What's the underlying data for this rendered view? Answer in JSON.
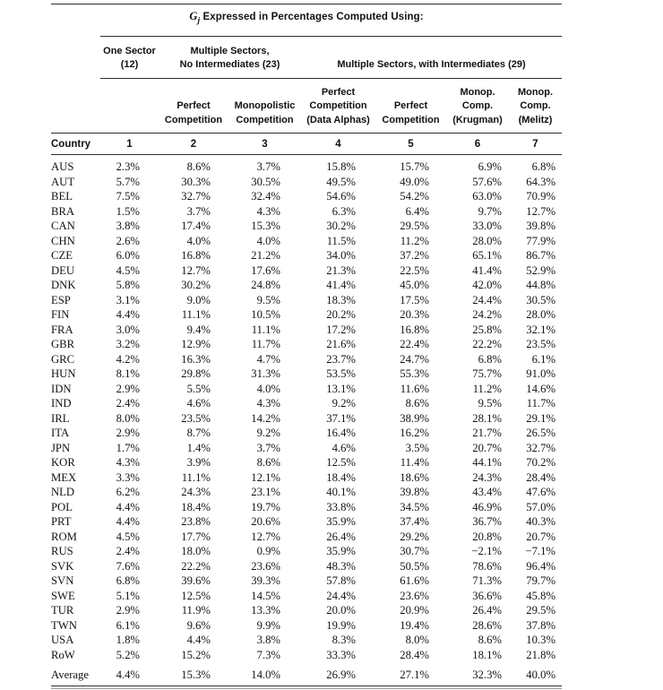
{
  "table": {
    "title": {
      "symbol": "G",
      "subscript": "j",
      "text": " Expressed in Percentages Computed Using:"
    },
    "group_headers": [
      {
        "line1": "One Sector",
        "line2": "(12)"
      },
      {
        "line1": "Multiple Sectors,",
        "line2": "No Intermediates (23)"
      },
      {
        "line1": "",
        "line2": "Multiple Sectors, with Intermediates (29)"
      }
    ],
    "column_headers": [
      {
        "line1": "",
        "line2": "",
        "line3": ""
      },
      {
        "line1": "",
        "line2": "Perfect",
        "line3": "Competition"
      },
      {
        "line1": "",
        "line2": "Monopolistic",
        "line3": "Competition"
      },
      {
        "line1": "Perfect",
        "line2": "Competition",
        "line3": "(Data Alphas)"
      },
      {
        "line1": "",
        "line2": "Perfect",
        "line3": "Competition"
      },
      {
        "line1": "Monop.",
        "line2": "Comp.",
        "line3": "(Krugman)"
      },
      {
        "line1": "Monop.",
        "line2": "Comp.",
        "line3": "(Melitz)"
      }
    ],
    "index_row": {
      "country_label": "Country",
      "numbers": [
        "1",
        "2",
        "3",
        "4",
        "5",
        "6",
        "7"
      ]
    },
    "rows": [
      {
        "country": "AUS",
        "values": [
          "2.3%",
          "8.6%",
          "3.7%",
          "15.8%",
          "15.7%",
          "6.9%",
          "6.8%"
        ]
      },
      {
        "country": "AUT",
        "values": [
          "5.7%",
          "30.3%",
          "30.5%",
          "49.5%",
          "49.0%",
          "57.6%",
          "64.3%"
        ]
      },
      {
        "country": "BEL",
        "values": [
          "7.5%",
          "32.7%",
          "32.4%",
          "54.6%",
          "54.2%",
          "63.0%",
          "70.9%"
        ]
      },
      {
        "country": "BRA",
        "values": [
          "1.5%",
          "3.7%",
          "4.3%",
          "6.3%",
          "6.4%",
          "9.7%",
          "12.7%"
        ]
      },
      {
        "country": "CAN",
        "values": [
          "3.8%",
          "17.4%",
          "15.3%",
          "30.2%",
          "29.5%",
          "33.0%",
          "39.8%"
        ]
      },
      {
        "country": "CHN",
        "values": [
          "2.6%",
          "4.0%",
          "4.0%",
          "11.5%",
          "11.2%",
          "28.0%",
          "77.9%"
        ]
      },
      {
        "country": "CZE",
        "values": [
          "6.0%",
          "16.8%",
          "21.2%",
          "34.0%",
          "37.2%",
          "65.1%",
          "86.7%"
        ]
      },
      {
        "country": "DEU",
        "values": [
          "4.5%",
          "12.7%",
          "17.6%",
          "21.3%",
          "22.5%",
          "41.4%",
          "52.9%"
        ]
      },
      {
        "country": "DNK",
        "values": [
          "5.8%",
          "30.2%",
          "24.8%",
          "41.4%",
          "45.0%",
          "42.0%",
          "44.8%"
        ]
      },
      {
        "country": "ESP",
        "values": [
          "3.1%",
          "9.0%",
          "9.5%",
          "18.3%",
          "17.5%",
          "24.4%",
          "30.5%"
        ]
      },
      {
        "country": "FIN",
        "values": [
          "4.4%",
          "11.1%",
          "10.5%",
          "20.2%",
          "20.3%",
          "24.2%",
          "28.0%"
        ]
      },
      {
        "country": "FRA",
        "values": [
          "3.0%",
          "9.4%",
          "11.1%",
          "17.2%",
          "16.8%",
          "25.8%",
          "32.1%"
        ]
      },
      {
        "country": "GBR",
        "values": [
          "3.2%",
          "12.9%",
          "11.7%",
          "21.6%",
          "22.4%",
          "22.2%",
          "23.5%"
        ]
      },
      {
        "country": "GRC",
        "values": [
          "4.2%",
          "16.3%",
          "4.7%",
          "23.7%",
          "24.7%",
          "6.8%",
          "6.1%"
        ]
      },
      {
        "country": "HUN",
        "values": [
          "8.1%",
          "29.8%",
          "31.3%",
          "53.5%",
          "55.3%",
          "75.7%",
          "91.0%"
        ]
      },
      {
        "country": "IDN",
        "values": [
          "2.9%",
          "5.5%",
          "4.0%",
          "13.1%",
          "11.6%",
          "11.2%",
          "14.6%"
        ]
      },
      {
        "country": "IND",
        "values": [
          "2.4%",
          "4.6%",
          "4.3%",
          "9.2%",
          "8.6%",
          "9.5%",
          "11.7%"
        ]
      },
      {
        "country": "IRL",
        "values": [
          "8.0%",
          "23.5%",
          "14.2%",
          "37.1%",
          "38.9%",
          "28.1%",
          "29.1%"
        ]
      },
      {
        "country": "ITA",
        "values": [
          "2.9%",
          "8.7%",
          "9.2%",
          "16.4%",
          "16.2%",
          "21.7%",
          "26.5%"
        ]
      },
      {
        "country": "JPN",
        "values": [
          "1.7%",
          "1.4%",
          "3.7%",
          "4.6%",
          "3.5%",
          "20.7%",
          "32.7%"
        ]
      },
      {
        "country": "KOR",
        "values": [
          "4.3%",
          "3.9%",
          "8.6%",
          "12.5%",
          "11.4%",
          "44.1%",
          "70.2%"
        ]
      },
      {
        "country": "MEX",
        "values": [
          "3.3%",
          "11.1%",
          "12.1%",
          "18.4%",
          "18.6%",
          "24.3%",
          "28.4%"
        ]
      },
      {
        "country": "NLD",
        "values": [
          "6.2%",
          "24.3%",
          "23.1%",
          "40.1%",
          "39.8%",
          "43.4%",
          "47.6%"
        ]
      },
      {
        "country": "POL",
        "values": [
          "4.4%",
          "18.4%",
          "19.7%",
          "33.8%",
          "34.5%",
          "46.9%",
          "57.0%"
        ]
      },
      {
        "country": "PRT",
        "values": [
          "4.4%",
          "23.8%",
          "20.6%",
          "35.9%",
          "37.4%",
          "36.7%",
          "40.3%"
        ]
      },
      {
        "country": "ROM",
        "values": [
          "4.5%",
          "17.7%",
          "12.7%",
          "26.4%",
          "29.2%",
          "20.8%",
          "20.7%"
        ]
      },
      {
        "country": "RUS",
        "values": [
          "2.4%",
          "18.0%",
          "0.9%",
          "35.9%",
          "30.7%",
          "−2.1%",
          "−7.1%"
        ]
      },
      {
        "country": "SVK",
        "values": [
          "7.6%",
          "22.2%",
          "23.6%",
          "48.3%",
          "50.5%",
          "78.6%",
          "96.4%"
        ]
      },
      {
        "country": "SVN",
        "values": [
          "6.8%",
          "39.6%",
          "39.3%",
          "57.8%",
          "61.6%",
          "71.3%",
          "79.7%"
        ]
      },
      {
        "country": "SWE",
        "values": [
          "5.1%",
          "12.5%",
          "14.5%",
          "24.4%",
          "23.6%",
          "36.6%",
          "45.8%"
        ]
      },
      {
        "country": "TUR",
        "values": [
          "2.9%",
          "11.9%",
          "13.3%",
          "20.0%",
          "20.9%",
          "26.4%",
          "29.5%"
        ]
      },
      {
        "country": "TWN",
        "values": [
          "6.1%",
          "9.6%",
          "9.9%",
          "19.9%",
          "19.4%",
          "28.6%",
          "37.8%"
        ]
      },
      {
        "country": "USA",
        "values": [
          "1.8%",
          "4.4%",
          "3.8%",
          "8.3%",
          "8.0%",
          "8.6%",
          "10.3%"
        ]
      },
      {
        "country": "RoW",
        "values": [
          "5.2%",
          "15.2%",
          "7.3%",
          "33.3%",
          "28.4%",
          "18.1%",
          "21.8%"
        ]
      }
    ],
    "average": {
      "label": "Average",
      "values": [
        "4.4%",
        "15.3%",
        "14.0%",
        "26.9%",
        "27.1%",
        "32.3%",
        "40.0%"
      ]
    }
  }
}
